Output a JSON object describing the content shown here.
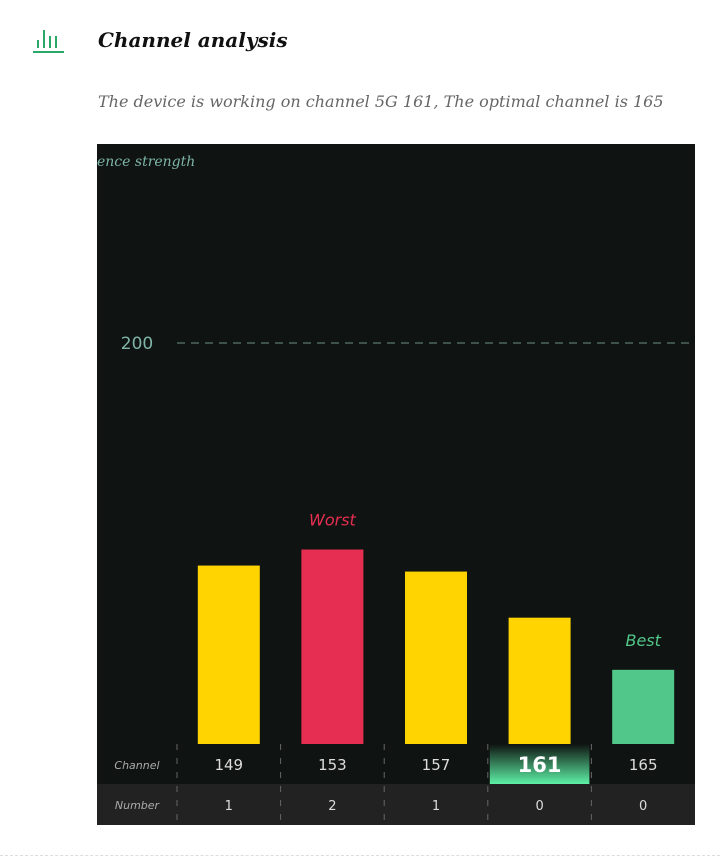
{
  "header": {
    "title": "Channel analysis",
    "icon": "bar-chart-icon",
    "subtitle": "The device is working on channel 5G 161, The optimal channel is 165"
  },
  "chart_data": {
    "type": "bar",
    "ylabel": "ence strength",
    "yticks": [
      200
    ],
    "ylim": [
      0,
      200
    ],
    "grid": "dashed at 200",
    "categories": [
      "149",
      "153",
      "157",
      "161",
      "165"
    ],
    "values": [
      89,
      97,
      86,
      63,
      37
    ],
    "colors": [
      "#ffd400",
      "#e52e52",
      "#ffd400",
      "#ffd400",
      "#52c78a"
    ],
    "annotations": [
      {
        "category": "153",
        "text": "Worst",
        "color": "#e52e52"
      },
      {
        "category": "165",
        "text": "Best",
        "color": "#52c78a"
      }
    ],
    "table": {
      "row_labels": [
        "Channel",
        "Number"
      ],
      "channels": [
        "149",
        "153",
        "157",
        "161",
        "165"
      ],
      "numbers": [
        "1",
        "2",
        "1",
        "0",
        "0"
      ],
      "current_channel": "161"
    }
  }
}
